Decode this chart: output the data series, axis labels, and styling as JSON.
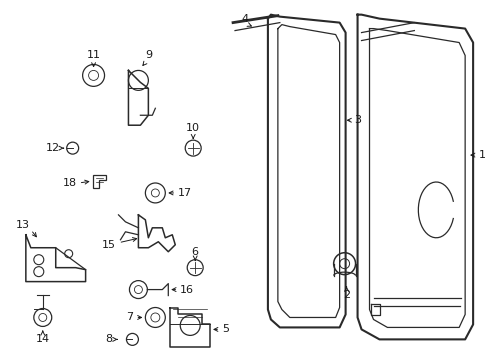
{
  "bg_color": "#ffffff",
  "line_color": "#2a2a2a",
  "text_color": "#1a1a1a",
  "figsize": [
    4.89,
    3.6
  ],
  "dpi": 100,
  "xlim": [
    0,
    489
  ],
  "ylim": [
    0,
    360
  ]
}
